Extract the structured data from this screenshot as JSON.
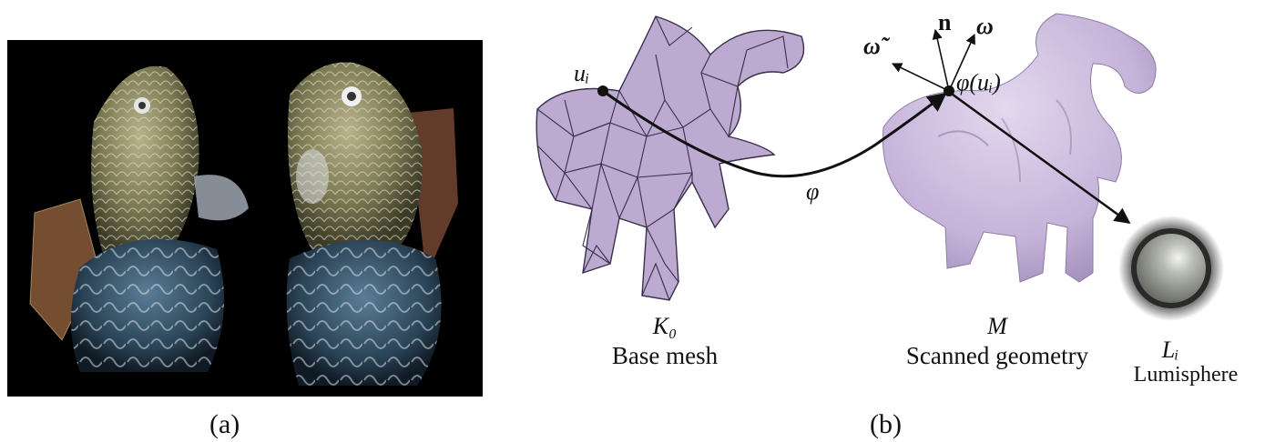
{
  "panels": {
    "a": {
      "caption": "(a)"
    },
    "b": {
      "caption": "(b)"
    }
  },
  "diagram": {
    "base_mesh": {
      "symbol": "K₀",
      "label": "Base mesh"
    },
    "scanned": {
      "symbol": "M",
      "label": "Scanned geometry"
    },
    "lumisphere": {
      "symbol": "Lᵢ",
      "label": "Lumisphere"
    },
    "point_u": "uᵢ",
    "point_phi_u": "φ(uᵢ)",
    "map_phi": "φ",
    "vec_n": "n",
    "vec_omega": "ω",
    "vec_omega_tilde": "ω̃"
  },
  "colors": {
    "mesh_fill": "#bcaad0",
    "mesh_edge": "#3a2f4a",
    "scan_fill": "#c9b8dc",
    "arrow": "#111111",
    "photo_bg": "#000000"
  }
}
